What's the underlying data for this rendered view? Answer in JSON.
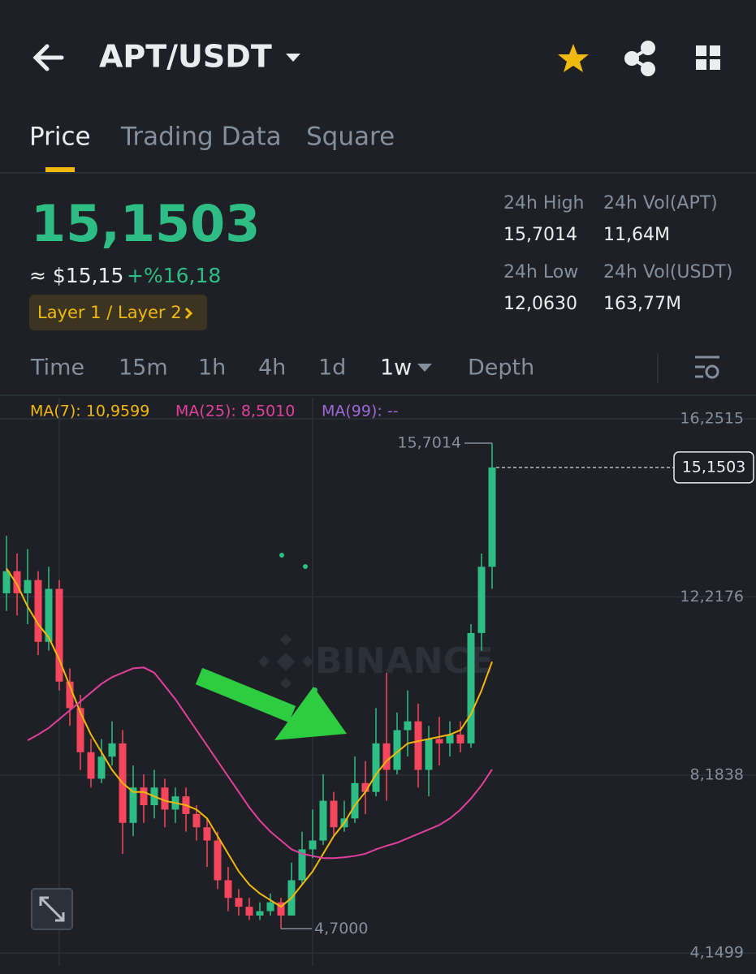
{
  "header": {
    "title": "APT/USDT"
  },
  "tabs": [
    "Price",
    "Trading Data",
    "Square"
  ],
  "ticker": {
    "price": "15,1503",
    "approx": "≈ $15,15",
    "change": "+%16,18",
    "tag": "Layer 1 / Layer 2",
    "stats": [
      {
        "label": "24h High",
        "value": "15,7014"
      },
      {
        "label": "24h Vol(APT)",
        "value": "11,64M"
      },
      {
        "label": "24h Low",
        "value": "12,0630"
      },
      {
        "label": "24h Vol(USDT)",
        "value": "163,77M"
      }
    ]
  },
  "intervals": [
    "Time",
    "15m",
    "1h",
    "4h",
    "1d",
    "1w",
    "Depth"
  ],
  "chart_data": {
    "type": "candlestick",
    "legend": [
      "MA(7): 10,9599",
      "MA(25): 8,5010",
      "MA(99): --"
    ],
    "watermark": "BINANCE",
    "ylim": [
      3.86,
      16.73
    ],
    "yticks": [
      {
        "value": 16.2515,
        "label": "16,2515"
      },
      {
        "value": 12.2176,
        "label": "12,2176"
      },
      {
        "value": 8.1838,
        "label": "8,1838"
      },
      {
        "value": 4.1499,
        "label": "4,1499"
      }
    ],
    "grid": true,
    "up_color": "#2ebd85",
    "down_color": "#f6465d",
    "open": [
      12.3,
      12.8,
      12.3,
      12.6,
      11.2,
      12.4,
      10.3,
      9.7,
      8.7,
      8.1,
      8.6,
      8.9,
      7.1,
      7.9,
      7.5,
      7.9,
      7.4,
      7.7,
      7.3,
      7.0,
      6.7,
      5.8,
      5.4,
      5.2,
      5.0,
      5.1,
      5.3,
      5.0,
      5.8,
      6.5,
      6.7,
      7.6,
      7.0,
      7.2,
      8.0,
      7.8,
      8.9,
      8.3,
      9.2,
      9.4,
      8.3,
      9.0,
      8.9,
      9.1,
      8.9,
      11.4,
      12.9
    ],
    "high": [
      13.6,
      13.2,
      13.3,
      12.8,
      12.9,
      12.6,
      10.6,
      10.0,
      9.0,
      9.0,
      9.4,
      9.2,
      8.4,
      8.2,
      8.3,
      8.1,
      7.9,
      7.9,
      7.5,
      7.2,
      6.9,
      6.1,
      5.6,
      5.4,
      5.3,
      5.5,
      5.4,
      6.2,
      6.9,
      7.4,
      8.2,
      7.8,
      7.6,
      8.6,
      8.5,
      9.7,
      10.5,
      9.6,
      10.1,
      9.8,
      9.3,
      9.5,
      9.4,
      9.4,
      11.6,
      13.2,
      15.7014
    ],
    "low": [
      11.9,
      11.8,
      11.6,
      10.9,
      11.0,
      10.1,
      9.3,
      8.3,
      7.9,
      8.0,
      8.4,
      6.4,
      6.8,
      7.1,
      7.2,
      7.0,
      7.1,
      6.9,
      6.7,
      6.1,
      5.6,
      5.1,
      5.0,
      4.9,
      4.9,
      5.0,
      4.7,
      5.0,
      5.7,
      6.3,
      6.6,
      6.8,
      6.9,
      7.1,
      7.3,
      7.7,
      7.6,
      8.2,
      8.6,
      7.9,
      7.7,
      8.4,
      8.6,
      8.7,
      8.8,
      11.0,
      12.4
    ],
    "close": [
      12.8,
      12.3,
      12.6,
      11.2,
      12.4,
      10.3,
      9.7,
      8.7,
      8.1,
      8.6,
      8.9,
      7.1,
      7.9,
      7.5,
      7.9,
      7.4,
      7.7,
      7.3,
      7.0,
      6.7,
      5.8,
      5.4,
      5.2,
      5.0,
      5.1,
      5.3,
      5.0,
      5.8,
      6.5,
      6.7,
      7.6,
      7.0,
      7.2,
      8.0,
      7.8,
      8.9,
      8.3,
      9.2,
      9.4,
      8.3,
      9.0,
      8.9,
      9.1,
      8.9,
      11.4,
      12.9,
      15.1503
    ],
    "series": [
      {
        "color": "#f0b90b",
        "values": [
          12.86,
          12.5,
          12.0,
          11.6,
          11.3,
          10.8,
          10.2,
          9.6,
          9.1,
          8.7,
          8.3,
          8.0,
          7.8,
          7.8,
          7.7,
          7.6,
          7.55,
          7.5,
          7.4,
          7.2,
          6.8,
          6.4,
          6.0,
          5.7,
          5.5,
          5.35,
          5.2,
          5.4,
          5.7,
          6.0,
          6.4,
          6.8,
          7.1,
          7.5,
          7.8,
          8.2,
          8.5,
          8.7,
          8.9,
          8.95,
          9.0,
          9.05,
          9.1,
          9.2,
          9.56,
          10.1,
          10.75
        ]
      },
      {
        "color": "#e0409c",
        "values": [
          null,
          null,
          8.97,
          9.1,
          9.25,
          9.45,
          9.65,
          9.85,
          10.05,
          10.25,
          10.4,
          10.5,
          10.6,
          10.62,
          10.5,
          10.2,
          9.9,
          9.55,
          9.2,
          8.85,
          8.5,
          8.15,
          7.8,
          7.45,
          7.15,
          6.9,
          6.7,
          6.5,
          6.4,
          6.35,
          6.3,
          6.3,
          6.32,
          6.35,
          6.4,
          6.5,
          6.58,
          6.65,
          6.75,
          6.85,
          6.95,
          7.05,
          7.2,
          7.4,
          7.65,
          7.95,
          8.31
        ]
      }
    ],
    "high_label": {
      "value": 15.7014,
      "label": "15,7014"
    },
    "low_label": {
      "value": 4.7,
      "label": "4,7000"
    },
    "last_price": {
      "value": 15.1503,
      "label": "15,1503"
    }
  }
}
